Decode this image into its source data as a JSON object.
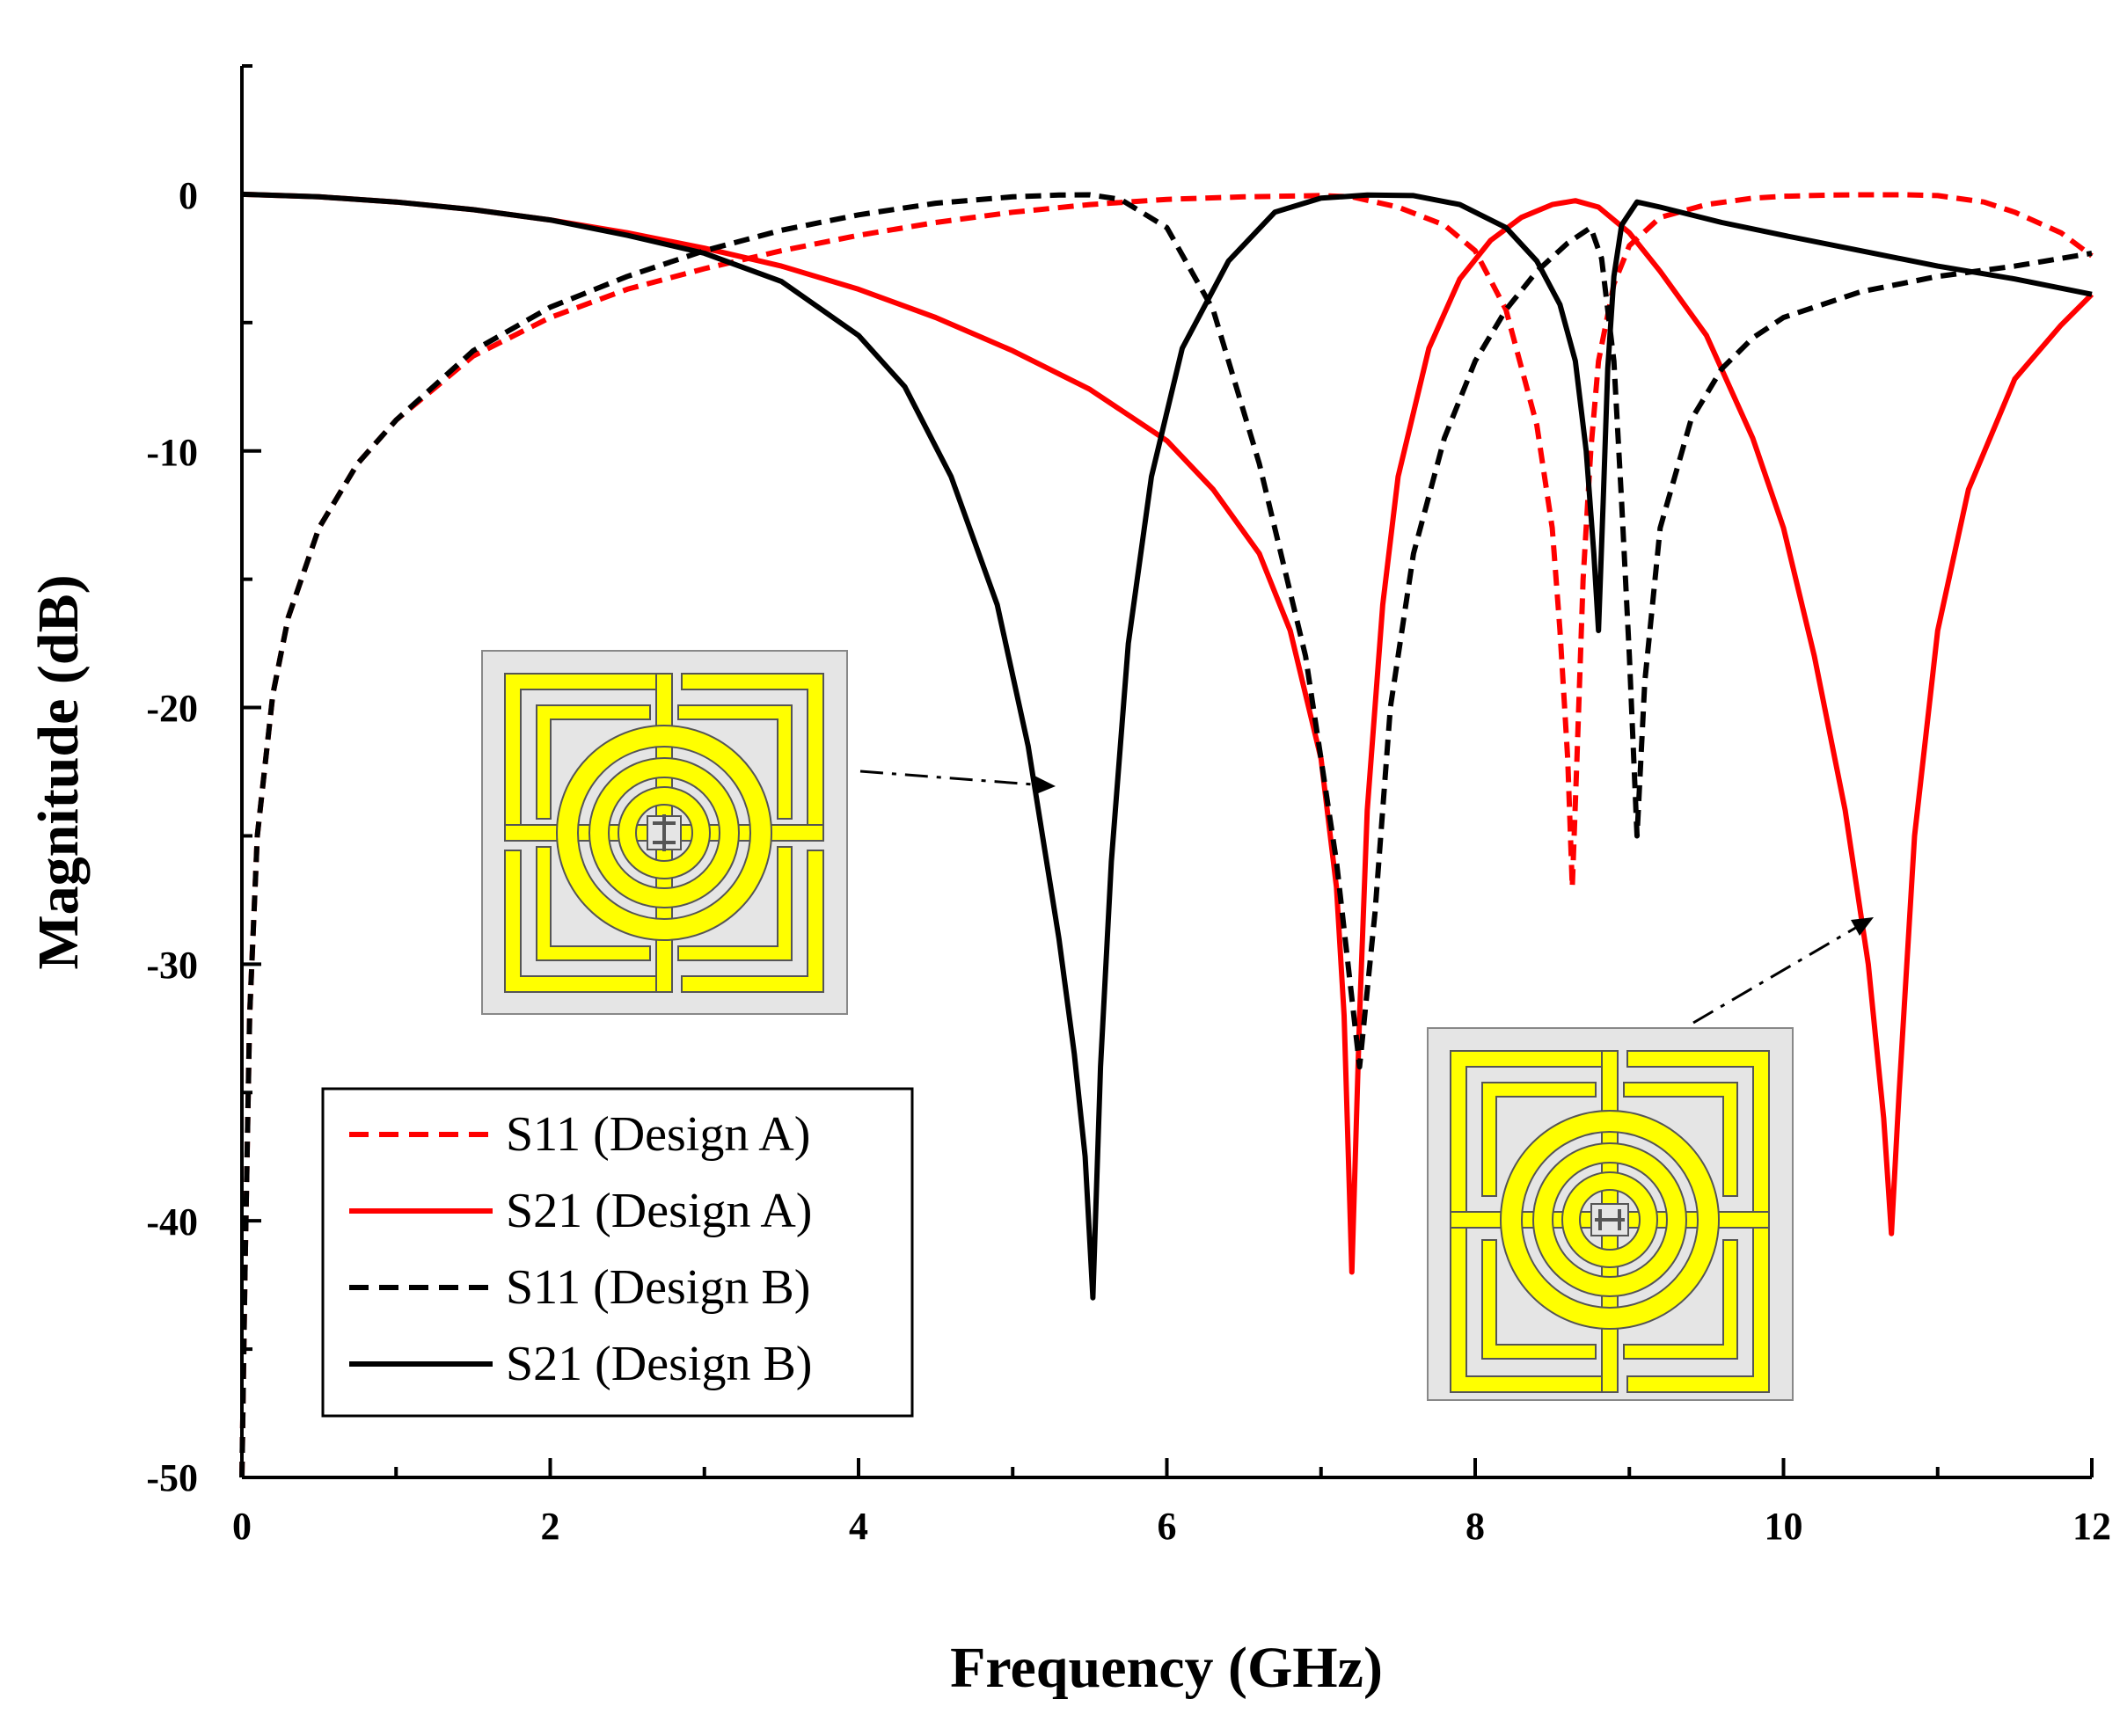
{
  "chart_data": {
    "type": "line",
    "title": "",
    "xlabel": "Frequency (GHz)",
    "ylabel": "Magnitude (dB)",
    "xlim": [
      0,
      12
    ],
    "ylim": [
      -50,
      5
    ],
    "xticks": [
      0,
      2,
      4,
      6,
      8,
      10,
      12
    ],
    "xtick_labels": [
      "0",
      "2",
      "4",
      "6",
      "8",
      "10",
      "12"
    ],
    "yticks": [
      0,
      -10,
      -20,
      -30,
      -40,
      -50
    ],
    "ytick_labels": [
      "0",
      "-10",
      "-20",
      "-30",
      "-40",
      "-50"
    ],
    "grid": false,
    "legend_position": "lower-left",
    "series": [
      {
        "name": "S11 (Design A)",
        "color": "#ff0000",
        "dash": "dashed",
        "x": [
          0.0,
          0.02,
          0.05,
          0.1,
          0.2,
          0.3,
          0.5,
          0.75,
          1.0,
          1.5,
          2.0,
          2.5,
          3.0,
          3.5,
          4.0,
          4.5,
          5.0,
          5.5,
          6.0,
          6.5,
          7.0,
          7.2,
          7.5,
          7.8,
          8.0,
          8.2,
          8.4,
          8.5,
          8.55,
          8.6,
          8.63,
          8.66,
          8.7,
          8.75,
          8.8,
          8.9,
          9.0,
          9.2,
          9.5,
          9.8,
          10.0,
          10.3,
          10.5,
          10.8,
          11.0,
          11.3,
          11.5,
          11.8,
          12.0
        ],
        "values": [
          -50,
          -42,
          -32,
          -25,
          -19.5,
          -16.5,
          -13,
          -10.5,
          -8.8,
          -6.3,
          -4.8,
          -3.7,
          -2.9,
          -2.2,
          -1.6,
          -1.1,
          -0.7,
          -0.4,
          -0.2,
          -0.1,
          -0.05,
          -0.1,
          -0.5,
          -1.2,
          -2.2,
          -4.5,
          -9,
          -13,
          -17,
          -22,
          -27,
          -22,
          -15,
          -10,
          -6.5,
          -3.5,
          -2,
          -0.9,
          -0.4,
          -0.15,
          -0.08,
          -0.03,
          -0.02,
          -0.02,
          -0.05,
          -0.3,
          -0.7,
          -1.5,
          -2.4
        ]
      },
      {
        "name": "S21 (Design A)",
        "color": "#ff0000",
        "dash": "solid",
        "x": [
          0.0,
          0.5,
          1.0,
          1.5,
          2.0,
          2.5,
          3.0,
          3.5,
          4.0,
          4.5,
          5.0,
          5.5,
          6.0,
          6.3,
          6.6,
          6.8,
          7.0,
          7.1,
          7.15,
          7.2,
          7.25,
          7.3,
          7.4,
          7.5,
          7.7,
          7.9,
          8.1,
          8.3,
          8.5,
          8.65,
          8.8,
          9.0,
          9.2,
          9.5,
          9.8,
          10.0,
          10.2,
          10.4,
          10.55,
          10.65,
          10.7,
          10.75,
          10.85,
          11.0,
          11.2,
          11.5,
          11.8,
          12.0
        ],
        "values": [
          0,
          -0.1,
          -0.3,
          -0.6,
          -1.0,
          -1.5,
          -2.1,
          -2.8,
          -3.7,
          -4.8,
          -6.1,
          -7.6,
          -9.6,
          -11.5,
          -14,
          -17,
          -22,
          -27,
          -32,
          -42,
          -32,
          -24,
          -16,
          -11,
          -6,
          -3.3,
          -1.8,
          -0.9,
          -0.4,
          -0.25,
          -0.5,
          -1.5,
          -3.0,
          -5.5,
          -9.5,
          -13,
          -18,
          -24,
          -30,
          -36,
          -40.5,
          -35,
          -25,
          -17,
          -11.5,
          -7.2,
          -5.1,
          -3.9
        ]
      },
      {
        "name": "S11 (Design B)",
        "color": "#000000",
        "dash": "dashed",
        "x": [
          0.0,
          0.02,
          0.05,
          0.1,
          0.2,
          0.3,
          0.5,
          0.75,
          1.0,
          1.5,
          2.0,
          2.5,
          3.0,
          3.5,
          4.0,
          4.5,
          5.0,
          5.3,
          5.5,
          5.7,
          6.0,
          6.3,
          6.6,
          6.9,
          7.1,
          7.25,
          7.35,
          7.45,
          7.6,
          7.8,
          8.0,
          8.2,
          8.4,
          8.6,
          8.75,
          8.82,
          8.9,
          8.95,
          9.0,
          9.05,
          9.1,
          9.2,
          9.4,
          9.6,
          9.8,
          10.0,
          10.5,
          11.0,
          11.5,
          12.0
        ],
        "values": [
          -50,
          -42,
          -32,
          -25,
          -19.5,
          -16.5,
          -13,
          -10.5,
          -8.8,
          -6.1,
          -4.4,
          -3.2,
          -2.2,
          -1.4,
          -0.8,
          -0.35,
          -0.1,
          -0.03,
          -0.02,
          -0.2,
          -1.3,
          -4.5,
          -10.5,
          -18,
          -26,
          -34,
          -28,
          -20,
          -14,
          -9.5,
          -6.5,
          -4.5,
          -3.0,
          -1.9,
          -1.3,
          -2.5,
          -6.5,
          -12,
          -18,
          -25,
          -19,
          -13,
          -8.8,
          -6.8,
          -5.6,
          -4.8,
          -3.8,
          -3.2,
          -2.8,
          -2.3
        ]
      },
      {
        "name": "S21 (Design B)",
        "color": "#000000",
        "dash": "solid",
        "x": [
          0.0,
          0.5,
          1.0,
          1.5,
          2.0,
          2.5,
          3.0,
          3.5,
          4.0,
          4.3,
          4.6,
          4.9,
          5.1,
          5.3,
          5.4,
          5.47,
          5.52,
          5.57,
          5.64,
          5.75,
          5.9,
          6.1,
          6.4,
          6.7,
          7.0,
          7.3,
          7.6,
          7.9,
          8.2,
          8.4,
          8.55,
          8.65,
          8.72,
          8.77,
          8.8,
          8.83,
          8.86,
          8.9,
          8.95,
          9.05,
          9.2,
          9.6,
          10.0,
          10.5,
          11.0,
          11.5,
          12.0
        ],
        "values": [
          0,
          -0.1,
          -0.3,
          -0.6,
          -1.0,
          -1.6,
          -2.3,
          -3.4,
          -5.5,
          -7.5,
          -11,
          -16,
          -21.5,
          -29,
          -33.5,
          -37.5,
          -43,
          -34,
          -26,
          -17.5,
          -11,
          -6,
          -2.6,
          -0.7,
          -0.15,
          -0.03,
          -0.05,
          -0.4,
          -1.3,
          -2.6,
          -4.3,
          -6.5,
          -10,
          -14,
          -17,
          -12,
          -6.8,
          -3.2,
          -1.2,
          -0.3,
          -0.5,
          -1.1,
          -1.6,
          -2.2,
          -2.8,
          -3.3,
          -3.9
        ]
      }
    ],
    "annotations": [
      {
        "text": "Design A unit cell inset (upper, arrow to S21 Design B notch ~5.5 GHz)",
        "points_to": [
          5.4,
          -23
        ]
      },
      {
        "text": "Design B unit cell inset (lower right, arrow to S21 Design A notch ~10.7 GHz)",
        "points_to": [
          10.5,
          -28
        ]
      }
    ]
  },
  "colors": {
    "red": "#ff0000",
    "black": "#000000",
    "inset_yellow": "#ffff00",
    "inset_bg": "#e5e5e5"
  }
}
